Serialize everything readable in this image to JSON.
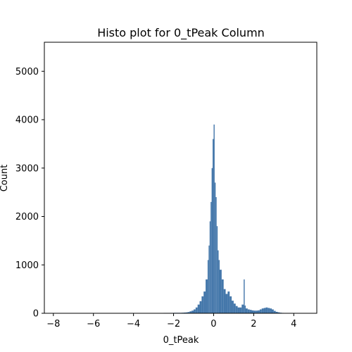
{
  "chart_data": {
    "type": "bar",
    "title": "Histo plot for 0_tPeak Column",
    "xlabel": "0_tPeak",
    "ylabel": "Count",
    "xlim": [
      -8.45,
      5.15
    ],
    "ylim": [
      0,
      5600
    ],
    "x_ticks": [
      -8,
      -6,
      -4,
      -2,
      0,
      2,
      4
    ],
    "y_ticks": [
      0,
      1000,
      2000,
      3000,
      4000,
      5000
    ],
    "bar_color": "#4477aa",
    "grid": false,
    "legend": "none",
    "series": [
      {
        "bins": [
          [
            -8.0,
            5
          ],
          [
            -7.5,
            5
          ],
          [
            -7.0,
            5
          ],
          [
            -6.5,
            5
          ],
          [
            -6.0,
            5
          ],
          [
            -5.5,
            5
          ],
          [
            -5.0,
            5
          ],
          [
            -4.5,
            5
          ],
          [
            -4.0,
            5
          ],
          [
            -3.5,
            6
          ],
          [
            -3.0,
            6
          ],
          [
            -2.5,
            8
          ],
          [
            -2.0,
            10
          ],
          [
            -1.6,
            12
          ],
          [
            -1.5,
            15
          ],
          [
            -1.4,
            18
          ],
          [
            -1.3,
            25
          ],
          [
            -1.2,
            40
          ],
          [
            -1.1,
            55
          ],
          [
            -1.0,
            80
          ],
          [
            -0.9,
            120
          ],
          [
            -0.8,
            180
          ],
          [
            -0.7,
            250
          ],
          [
            -0.6,
            350
          ],
          [
            -0.5,
            450
          ],
          [
            -0.4,
            700
          ],
          [
            -0.3,
            1100
          ],
          [
            -0.25,
            1400
          ],
          [
            -0.2,
            1900
          ],
          [
            -0.15,
            2300
          ],
          [
            -0.1,
            3000
          ],
          [
            -0.05,
            3600
          ],
          [
            0.0,
            3900
          ],
          [
            0.05,
            2700
          ],
          [
            0.1,
            2400
          ],
          [
            0.15,
            1800
          ],
          [
            0.2,
            1300
          ],
          [
            0.25,
            1100
          ],
          [
            0.3,
            900
          ],
          [
            0.4,
            700
          ],
          [
            0.5,
            500
          ],
          [
            0.6,
            400
          ],
          [
            0.7,
            450
          ],
          [
            0.8,
            350
          ],
          [
            0.9,
            260
          ],
          [
            1.0,
            200
          ],
          [
            1.1,
            150
          ],
          [
            1.2,
            120
          ],
          [
            1.3,
            120
          ],
          [
            1.4,
            180
          ],
          [
            1.5,
            700
          ],
          [
            1.55,
            160
          ],
          [
            1.6,
            100
          ],
          [
            1.7,
            80
          ],
          [
            1.8,
            70
          ],
          [
            1.9,
            60
          ],
          [
            2.0,
            55
          ],
          [
            2.1,
            55
          ],
          [
            2.2,
            60
          ],
          [
            2.3,
            80
          ],
          [
            2.4,
            100
          ],
          [
            2.5,
            110
          ],
          [
            2.6,
            120
          ],
          [
            2.7,
            110
          ],
          [
            2.8,
            100
          ],
          [
            2.9,
            80
          ],
          [
            3.0,
            50
          ],
          [
            3.1,
            30
          ],
          [
            3.2,
            20
          ],
          [
            3.3,
            12
          ],
          [
            3.4,
            8
          ],
          [
            3.5,
            5
          ]
        ]
      }
    ]
  }
}
